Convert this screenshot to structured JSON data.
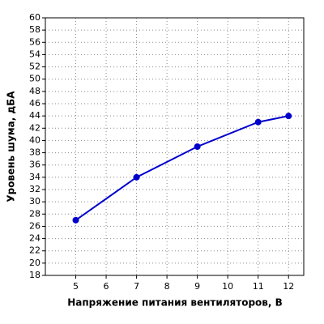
{
  "chart_data": {
    "type": "line",
    "x_label": "Напряжение питания вентиляторов, В",
    "y_label": "Уровень шума, дБА",
    "x": [
      5,
      7,
      9,
      11,
      12
    ],
    "series": [
      {
        "name": "Уровень шума",
        "color": "#0000cc",
        "values": [
          27,
          34,
          39,
          43,
          44
        ]
      }
    ],
    "xlim": [
      4,
      12.5
    ],
    "xticks": [
      5,
      6,
      7,
      8,
      9,
      10,
      11,
      12
    ],
    "ylim": [
      18,
      60
    ],
    "yticks": [
      18,
      20,
      22,
      24,
      26,
      28,
      30,
      32,
      34,
      36,
      38,
      40,
      42,
      44,
      46,
      48,
      50,
      52,
      54,
      56,
      58,
      60
    ],
    "grid": true
  }
}
